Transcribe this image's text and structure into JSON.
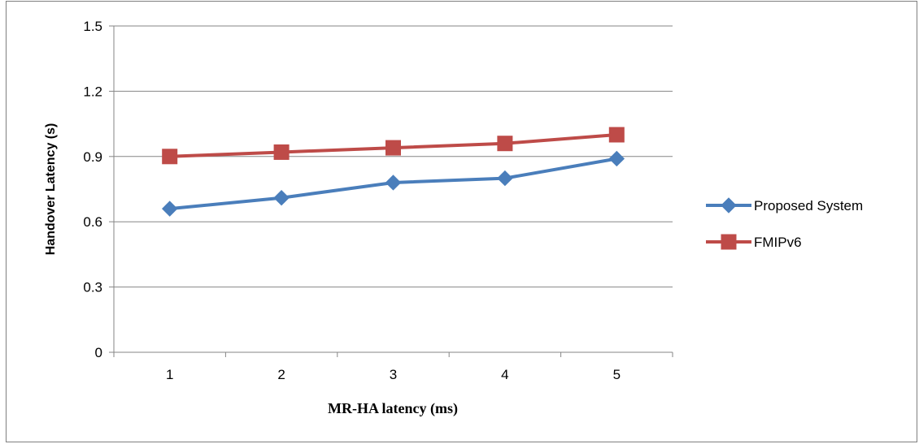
{
  "chart_data": {
    "type": "line",
    "title": "",
    "xlabel": "MR-HA latency (ms)",
    "ylabel": "Handover Latency (s)",
    "categories": [
      "1",
      "2",
      "3",
      "4",
      "5"
    ],
    "ylim": [
      0,
      1.5
    ],
    "yticks": [
      "0",
      "0.3",
      "0.6",
      "0.9",
      "1.2",
      "1.5"
    ],
    "grid": true,
    "legend_position": "right",
    "series": [
      {
        "name": "Proposed System",
        "values": [
          0.66,
          0.71,
          0.78,
          0.8,
          0.89
        ],
        "color": "#4a7ebb",
        "marker": "diamond"
      },
      {
        "name": "FMIPv6",
        "values": [
          0.9,
          0.92,
          0.94,
          0.96,
          1.0
        ],
        "color": "#be4b48",
        "marker": "square"
      }
    ]
  }
}
